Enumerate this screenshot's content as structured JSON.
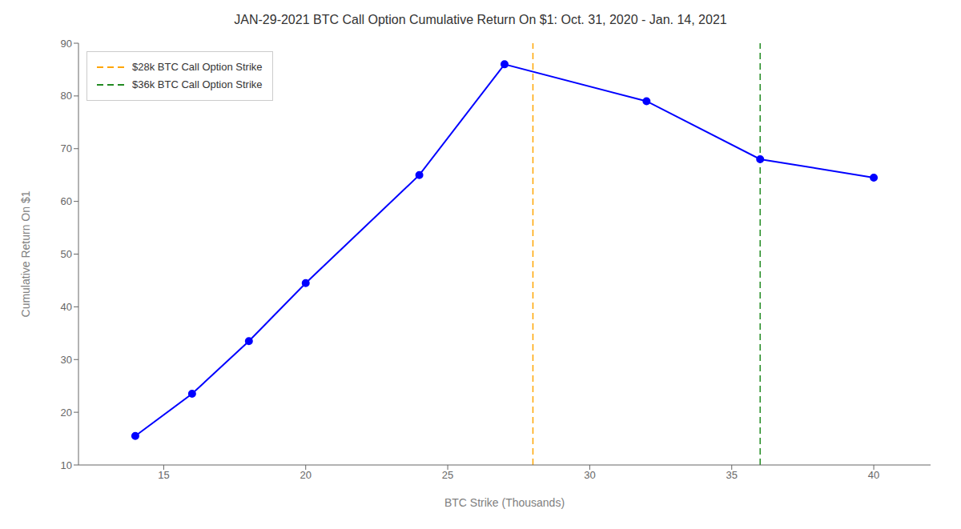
{
  "chart_data": {
    "type": "line",
    "title": "JAN-29-2021 BTC Call Option Cumulative Return On $1: Oct. 31, 2020 - Jan. 14, 2021",
    "x_label": "BTC Strike (Thousands)",
    "y_label": "Cumulative Return On $1",
    "x": [
      14,
      16,
      18,
      20,
      24,
      27,
      32,
      36,
      40
    ],
    "values": [
      15.5,
      23.5,
      33.5,
      44.5,
      65,
      86,
      79,
      68,
      64.5
    ],
    "color": "blue",
    "marker": "circle",
    "vlines": [
      {
        "x": 28,
        "name": "$28k BTC Call Option Strike",
        "color": "#FFA500",
        "line_style": "dashed"
      },
      {
        "x": 36,
        "name": "$36k BTC Call Option Strike",
        "color": "#228B22",
        "line_style": "dashed"
      }
    ],
    "xlim": [
      12,
      42
    ],
    "xticks": [
      15,
      20,
      25,
      30,
      35,
      40
    ],
    "ylim": [
      10,
      90
    ],
    "yticks": [
      10,
      20,
      30,
      40,
      50,
      60,
      70,
      80,
      90
    ],
    "grid": false,
    "legend": "upper left"
  }
}
